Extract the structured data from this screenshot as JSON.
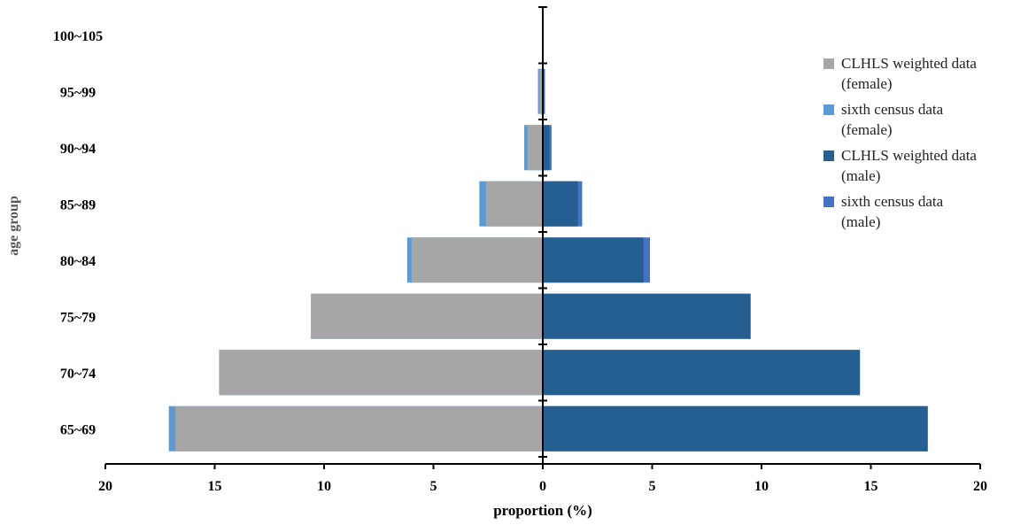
{
  "chart_data": {
    "type": "bar",
    "orientation": "horizontal-pyramid",
    "xlabel": "proportion (%)",
    "ylabel": "age group",
    "xlim": [
      -20,
      20
    ],
    "x_ticks": [
      "20",
      "15",
      "10",
      "5",
      "0",
      "5",
      "10",
      "15",
      "20"
    ],
    "categories": [
      "65~69",
      "70~74",
      "75~79",
      "80~84",
      "85~89",
      "90~94",
      "95~99",
      "100~105"
    ],
    "series": [
      {
        "name": "CLHLS weighted data\n(female)",
        "side": "left",
        "color": "#a6a6a6",
        "values": [
          16.8,
          14.8,
          10.6,
          6.0,
          2.6,
          0.7,
          0.15,
          0.0
        ]
      },
      {
        "name": "sixth census data\n(female)",
        "side": "left",
        "color": "#5b9bd5",
        "values": [
          17.1,
          14.8,
          10.6,
          6.2,
          2.9,
          0.85,
          0.22,
          0.0
        ]
      },
      {
        "name": "CLHLS weighted data\n(male)",
        "side": "right",
        "color": "#255e91",
        "values": [
          17.6,
          14.5,
          9.5,
          4.6,
          1.6,
          0.3,
          0.05,
          0.0
        ]
      },
      {
        "name": "sixth census data\n(male)",
        "side": "right",
        "color": "#4472c4",
        "values": [
          17.6,
          14.5,
          9.5,
          4.9,
          1.8,
          0.4,
          0.1,
          0.0
        ]
      }
    ],
    "legend_position": "right",
    "grid": false
  }
}
